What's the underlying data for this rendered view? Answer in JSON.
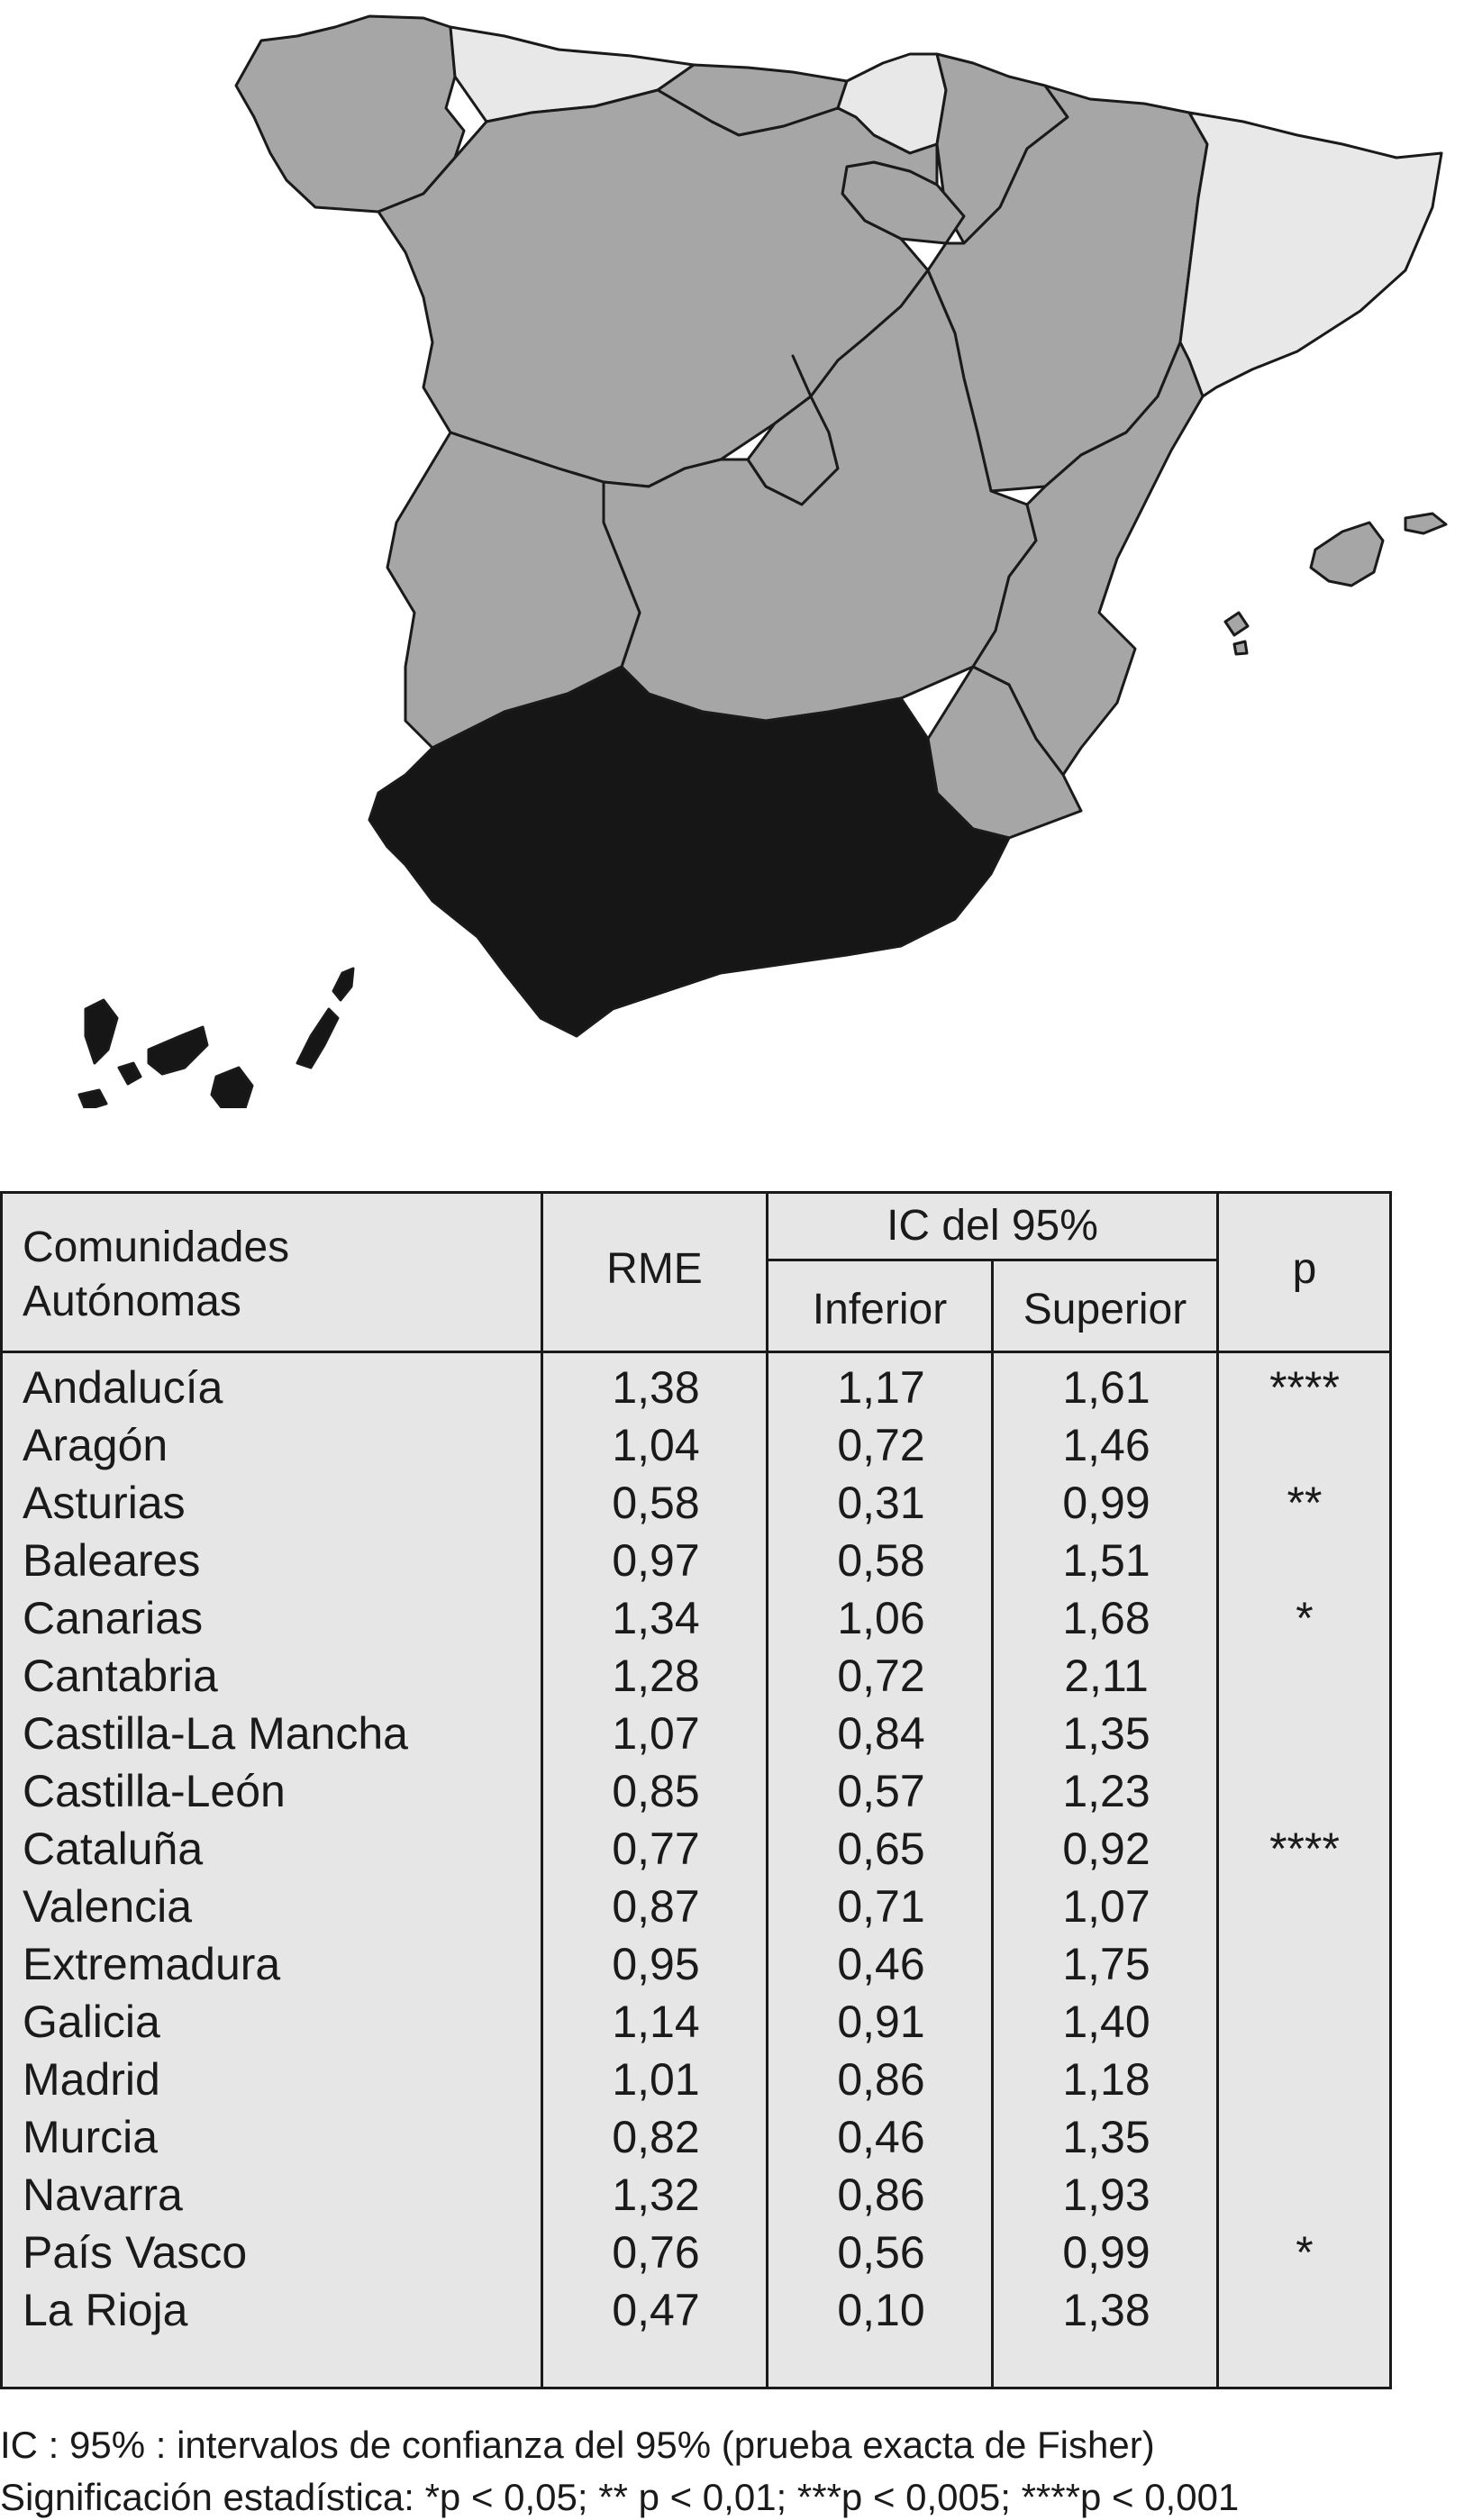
{
  "colors": {
    "high_significant": "#161616",
    "not_significant": "#a6a6a6",
    "low_significant": "#e8e8e8",
    "outline": "#1a1a1a",
    "table_bg": "#e6e6e6"
  },
  "map": {
    "regions": [
      {
        "name": "Galicia",
        "shade": "not_significant"
      },
      {
        "name": "Asturias",
        "shade": "low_significant"
      },
      {
        "name": "Cantabria",
        "shade": "not_significant"
      },
      {
        "name": "País Vasco",
        "shade": "low_significant"
      },
      {
        "name": "Navarra",
        "shade": "not_significant"
      },
      {
        "name": "La Rioja",
        "shade": "not_significant"
      },
      {
        "name": "Aragón",
        "shade": "not_significant"
      },
      {
        "name": "Cataluña",
        "shade": "low_significant"
      },
      {
        "name": "Castilla-León",
        "shade": "not_significant"
      },
      {
        "name": "Madrid",
        "shade": "not_significant"
      },
      {
        "name": "Castilla-La Mancha",
        "shade": "not_significant"
      },
      {
        "name": "Extremadura",
        "shade": "not_significant"
      },
      {
        "name": "Valencia",
        "shade": "not_significant"
      },
      {
        "name": "Murcia",
        "shade": "not_significant"
      },
      {
        "name": "Andalucía",
        "shade": "high_significant"
      },
      {
        "name": "Baleares",
        "shade": "not_significant"
      },
      {
        "name": "Canarias",
        "shade": "high_significant"
      }
    ]
  },
  "table": {
    "headers": {
      "region": "Comunidades\nAutónomas",
      "rme": "RME",
      "ci": "IC del 95%",
      "lower": "Inferior",
      "upper": "Superior",
      "p": "p"
    },
    "rows": [
      {
        "region": "Andalucía",
        "rme": "1,38",
        "lower": "1,17",
        "upper": "1,61",
        "p": "****"
      },
      {
        "region": "Aragón",
        "rme": "1,04",
        "lower": "0,72",
        "upper": "1,46",
        "p": ""
      },
      {
        "region": "Asturias",
        "rme": "0,58",
        "lower": "0,31",
        "upper": "0,99",
        "p": "**"
      },
      {
        "region": "Baleares",
        "rme": "0,97",
        "lower": "0,58",
        "upper": "1,51",
        "p": ""
      },
      {
        "region": "Canarias",
        "rme": "1,34",
        "lower": "1,06",
        "upper": "1,68",
        "p": "*"
      },
      {
        "region": "Cantabria",
        "rme": "1,28",
        "lower": "0,72",
        "upper": "2,11",
        "p": ""
      },
      {
        "region": "Castilla-La Mancha",
        "rme": "1,07",
        "lower": "0,84",
        "upper": "1,35",
        "p": ""
      },
      {
        "region": "Castilla-León",
        "rme": "0,85",
        "lower": "0,57",
        "upper": "1,23",
        "p": ""
      },
      {
        "region": "Cataluña",
        "rme": "0,77",
        "lower": "0,65",
        "upper": "0,92",
        "p": "****"
      },
      {
        "region": "Valencia",
        "rme": "0,87",
        "lower": "0,71",
        "upper": "1,07",
        "p": ""
      },
      {
        "region": "Extremadura",
        "rme": "0,95",
        "lower": "0,46",
        "upper": "1,75",
        "p": ""
      },
      {
        "region": "Galicia",
        "rme": "1,14",
        "lower": "0,91",
        "upper": "1,40",
        "p": ""
      },
      {
        "region": "Madrid",
        "rme": "1,01",
        "lower": "0,86",
        "upper": "1,18",
        "p": ""
      },
      {
        "region": "Murcia",
        "rme": "0,82",
        "lower": "0,46",
        "upper": "1,35",
        "p": ""
      },
      {
        "region": "Navarra",
        "rme": "1,32",
        "lower": "0,86",
        "upper": "1,93",
        "p": ""
      },
      {
        "region": "País Vasco",
        "rme": "0,76",
        "lower": "0,56",
        "upper": "0,99",
        "p": "*"
      },
      {
        "region": "La Rioja",
        "rme": "0,47",
        "lower": "0,10",
        "upper": "1,38",
        "p": ""
      }
    ]
  },
  "footnotes": {
    "ci_note": "IC : 95% : intervalos de confianza del 95% (prueba exacta de Fisher)",
    "significance_note": "Significación estadística: *p < 0,05; ** p < 0,01; ***p < 0,005; ****p < 0,001"
  }
}
